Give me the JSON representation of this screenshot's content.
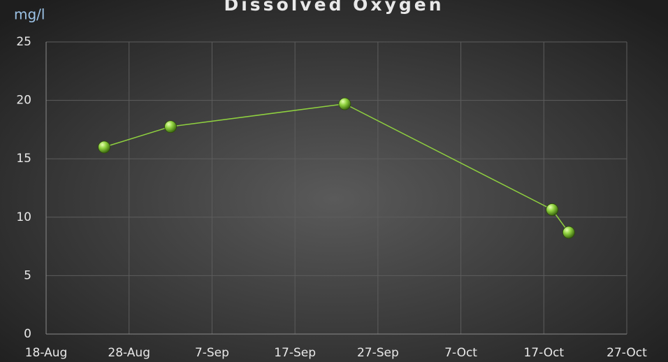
{
  "chart_data": {
    "type": "line",
    "title": "Dissolved Oxygen",
    "y_label": "mg/l",
    "x": [
      "25-Aug",
      "2-Sep",
      "23-Sep",
      "18-Oct",
      "20-Oct"
    ],
    "series": [
      {
        "name": "Dissolved Oxygen",
        "color": "#8fd13f",
        "values": [
          16.0,
          17.75,
          19.7,
          10.65,
          8.7
        ]
      }
    ],
    "xlim": [
      "18-Aug",
      "27-Oct"
    ],
    "xticks": [
      "18-Aug",
      "28-Aug",
      "7-Sep",
      "17-Sep",
      "27-Sep",
      "7-Oct",
      "17-Oct",
      "27-Oct"
    ],
    "ylim": [
      0,
      25
    ],
    "yticks": [
      0,
      5,
      10,
      15,
      20,
      25
    ],
    "grid": true
  }
}
